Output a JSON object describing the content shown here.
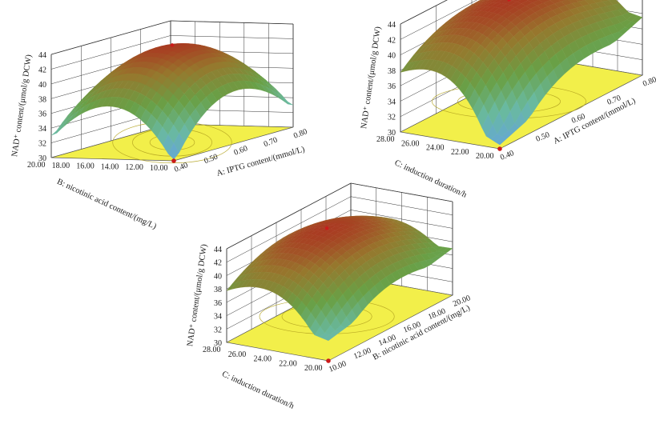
{
  "chart_data": [
    {
      "type": "surface",
      "zlabel": "NAD⁺ content/(μmol/g DCW)",
      "z_ticks": [
        "30",
        "32",
        "34",
        "36",
        "38",
        "40",
        "42",
        "44"
      ],
      "zlim": [
        30,
        44
      ],
      "x_axis": {
        "label": "A: IPTG content/(mmol/L)",
        "ticks": [
          "0.40",
          "0.50",
          "0.60",
          "0.70",
          "0.80"
        ],
        "range": [
          0.4,
          0.8
        ]
      },
      "y_axis": {
        "label": "B: nicotinic acid content/(mg/L)",
        "ticks": [
          "10.00",
          "12.00",
          "14.00",
          "16.00",
          "18.00",
          "20.00"
        ],
        "range": [
          10.0,
          20.0
        ]
      },
      "corner_z": {
        "x_min_y_min": 30.2,
        "x_max_y_min": 33.0,
        "x_min_y_max": 33.0,
        "x_max_y_max": 33.0
      },
      "peak": {
        "x": 0.6,
        "y": 15.0,
        "z": 43.2
      },
      "grid": true
    },
    {
      "type": "surface",
      "zlabel": "NAD⁺ content/(μmol/g DCW)",
      "z_ticks": [
        "30",
        "32",
        "34",
        "36",
        "38",
        "40",
        "42",
        "44"
      ],
      "zlim": [
        30,
        44
      ],
      "x_axis": {
        "label": "A: IPTG content/(mmol/L)",
        "ticks": [
          "0.40",
          "0.50",
          "0.60",
          "0.70",
          "0.80"
        ],
        "range": [
          0.4,
          0.8
        ]
      },
      "y_axis": {
        "label": "C: induction duration/h",
        "ticks": [
          "20.00",
          "22.00",
          "24.00",
          "26.00",
          "28.00"
        ],
        "range": [
          20.0,
          28.0
        ]
      },
      "corner_z": {
        "x_min_y_min": 30.5,
        "x_max_y_min": 37.5,
        "x_min_y_max": 36.5,
        "x_max_y_max": 40.0
      },
      "peak": {
        "x": 0.6,
        "y": 25.0,
        "z": 43.2
      },
      "grid": true
    },
    {
      "type": "surface",
      "zlabel": "NAD⁺ content/(μmol/g DCW)",
      "z_ticks": [
        "30",
        "32",
        "34",
        "36",
        "38",
        "40",
        "42",
        "44"
      ],
      "zlim": [
        30,
        44
      ],
      "x_axis": {
        "label": "B: nicotinic acid content/(mg/L)",
        "ticks": [
          "10.00",
          "12.00",
          "14.00",
          "16.00",
          "18.00",
          "20.00"
        ],
        "range": [
          10.0,
          20.0
        ]
      },
      "y_axis": {
        "label": "C: induction duration/h",
        "ticks": [
          "20.00",
          "22.00",
          "24.00",
          "26.00",
          "28.00"
        ],
        "range": [
          20.0,
          28.0
        ]
      },
      "corner_z": {
        "x_min_y_min": 33.0,
        "x_max_y_min": 37.0,
        "x_min_y_max": 36.5,
        "x_max_y_max": 36.5
      },
      "peak": {
        "x": 15.0,
        "y": 25.0,
        "z": 43.2
      },
      "grid": true
    }
  ]
}
